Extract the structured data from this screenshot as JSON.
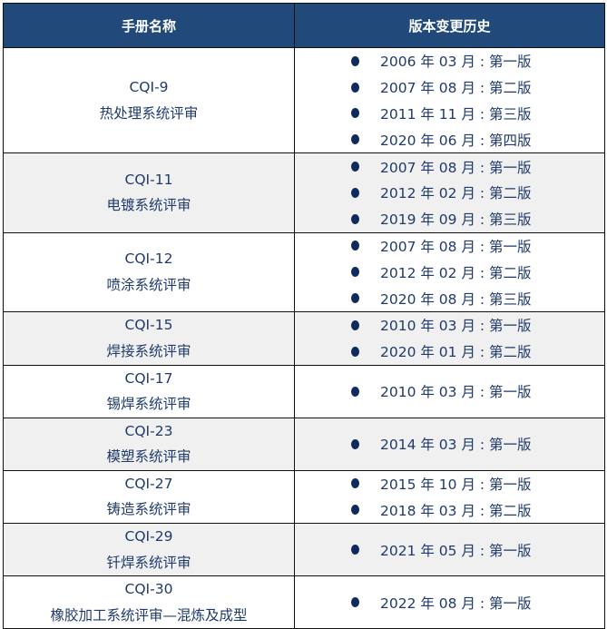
{
  "header": {
    "col1": "手册名称",
    "col2": "版本变更历史"
  },
  "rows": [
    {
      "code": "CQI-9",
      "name": "热处理系统评审",
      "history": [
        "2006 年 03 月 : 第一版",
        "2007 年 08 月 : 第二版",
        "2011 年 11 月 : 第三版",
        "2020 年 06 月 : 第四版"
      ]
    },
    {
      "code": "CQI-11",
      "name": "电镀系统评审",
      "history": [
        "2007 年 08 月 : 第一版",
        "2012 年 02 月 : 第二版",
        "2019 年 09 月 : 第三版"
      ]
    },
    {
      "code": "CQI-12",
      "name": "喷涂系统评审",
      "history": [
        "2007 年 08 月 : 第一版",
        "2012 年 02 月 : 第二版",
        "2020 年 08 月 : 第三版"
      ]
    },
    {
      "code": "CQI-15",
      "name": "焊接系统评审",
      "history": [
        "2010 年 03 月 : 第一版",
        "2020 年 01 月 : 第二版"
      ]
    },
    {
      "code": "CQI-17",
      "name": "锡焊系统评审",
      "history": [
        "2010 年 03 月 : 第一版"
      ]
    },
    {
      "code": "CQI-23",
      "name": "模塑系统评审",
      "history": [
        "2014 年 03 月 : 第一版"
      ]
    },
    {
      "code": "CQI-27",
      "name": "铸造系统评审",
      "history": [
        "2015 年 10 月 : 第一版",
        "2018 年 03 月 : 第二版"
      ]
    },
    {
      "code": "CQI-29",
      "name": "钎焊系统评审",
      "history": [
        "2021 年 05 月 : 第一版"
      ]
    },
    {
      "code": "CQI-30",
      "name": "橡胶加工系统评审—混炼及成型",
      "history": [
        "2022 年 08 月 : 第一版"
      ]
    }
  ],
  "colors": {
    "header_bg": "#214a7b",
    "text": "#1f3a6b",
    "alt_row": "#f0f0f0"
  }
}
